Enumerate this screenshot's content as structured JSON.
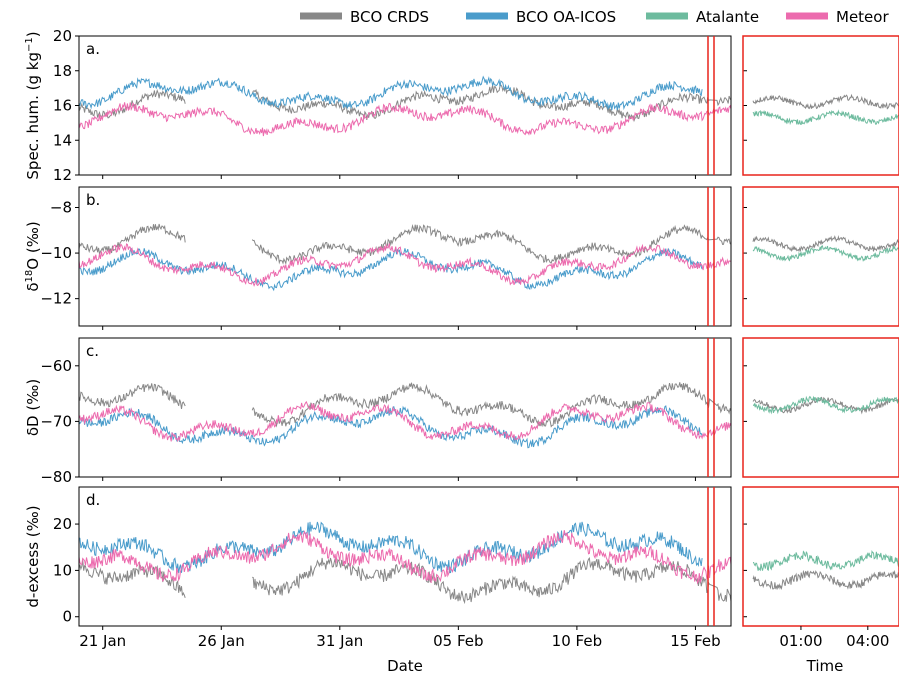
{
  "legend": [
    {
      "name": "BCO CRDS",
      "color": "#888888"
    },
    {
      "name": "BCO OA-ICOS",
      "color": "#4a9ccb"
    },
    {
      "name": "Atalante",
      "color": "#6dbb9e"
    },
    {
      "name": "Meteor",
      "color": "#ec6bae"
    }
  ],
  "highlight_color": "#e8241c",
  "chart_data": {
    "type": "line",
    "legend_position": "top",
    "panels": [
      {
        "label": "a.",
        "ylabel_main": "Spec. hum. (g kg",
        "ylabel_sup": "−1",
        "ylabel_tail": ")",
        "yticks": [
          "12",
          "14",
          "16",
          "18",
          "20"
        ],
        "ylim": [
          12,
          20
        ],
        "series_means": {
          "BCO CRDS": 16.2,
          "BCO OA-ICOS": 16.7,
          "Atalante": 15.3,
          "Meteor": 15.2
        }
      },
      {
        "label": "b.",
        "ylabel_main": "δ",
        "ylabel_sup": "18",
        "ylabel_tail": "O (‰)",
        "yticks": [
          "−12",
          "−10",
          "−8"
        ],
        "ylim": [
          -13.2,
          -7.1
        ],
        "series_means": {
          "BCO CRDS": -9.6,
          "BCO OA-ICOS": -10.7,
          "Atalante": -10.0,
          "Meteor": -10.5
        }
      },
      {
        "label": "c.",
        "ylabel_main": "δD (‰)",
        "ylabel_sup": "",
        "ylabel_tail": "",
        "yticks": [
          "−80",
          "−70",
          "−60"
        ],
        "ylim": [
          -80,
          -55
        ],
        "series_means": {
          "BCO CRDS": -67,
          "BCO OA-ICOS": -71,
          "Atalante": -67,
          "Meteor": -70
        }
      },
      {
        "label": "d.",
        "ylabel_main": "d-excess (‰)",
        "ylabel_sup": "",
        "ylabel_tail": "",
        "yticks": [
          "0",
          "10",
          "20"
        ],
        "ylim": [
          -2,
          28
        ],
        "series_means": {
          "BCO CRDS": 8,
          "BCO OA-ICOS": 15,
          "Atalante": 12,
          "Meteor": 13
        }
      }
    ],
    "main_x": {
      "xlabel": "Date",
      "ticks": [
        "21 Jan",
        "26 Jan",
        "31 Jan",
        "05 Feb",
        "10 Feb",
        "15 Feb"
      ],
      "range_days": [
        20,
        47.5
      ]
    },
    "zoom_x": {
      "xlabel": "Time",
      "ticks": [
        "01:00",
        "04:00"
      ],
      "range_hours": [
        -1.6,
        5.4
      ]
    }
  }
}
